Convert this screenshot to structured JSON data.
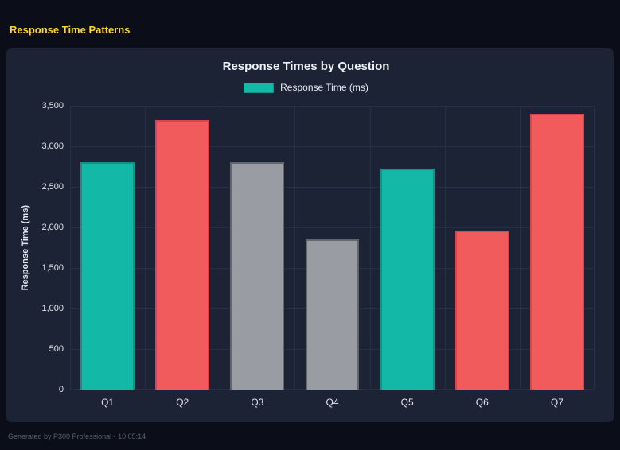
{
  "page": {
    "title": "Response Time Patterns",
    "footer": "Generated by P300 Professional - 10:05:14"
  },
  "chart_data": {
    "type": "bar",
    "title": "Response Times by Question",
    "legend": [
      {
        "label": "Response Time (ms)",
        "color": "#14b8a6",
        "border": "#0d9488"
      }
    ],
    "categories": [
      "Q1",
      "Q2",
      "Q3",
      "Q4",
      "Q5",
      "Q6",
      "Q7"
    ],
    "values": [
      2800,
      3320,
      2800,
      1850,
      2730,
      1960,
      3400
    ],
    "bar_colors": [
      "#14b8a6",
      "#f15b5b",
      "#9a9ca3",
      "#9a9ca3",
      "#14b8a6",
      "#f15b5b",
      "#f15b5b"
    ],
    "bar_border_colors": [
      "#0d9488",
      "#d64550",
      "#63656c",
      "#63656c",
      "#0d9488",
      "#d64550",
      "#d64550"
    ],
    "xlabel": "",
    "ylabel": "Response Time (ms)",
    "ylim": [
      0,
      3500
    ],
    "yticks": [
      0,
      500,
      1000,
      1500,
      2000,
      2500,
      3000,
      3500
    ],
    "ytick_labels": [
      "0",
      "500",
      "1,000",
      "1,500",
      "2,000",
      "2,500",
      "3,000",
      "3,500"
    ],
    "grid": true,
    "legend_position": "top",
    "background": "#1b2335",
    "gridline_color": "#272f44"
  }
}
